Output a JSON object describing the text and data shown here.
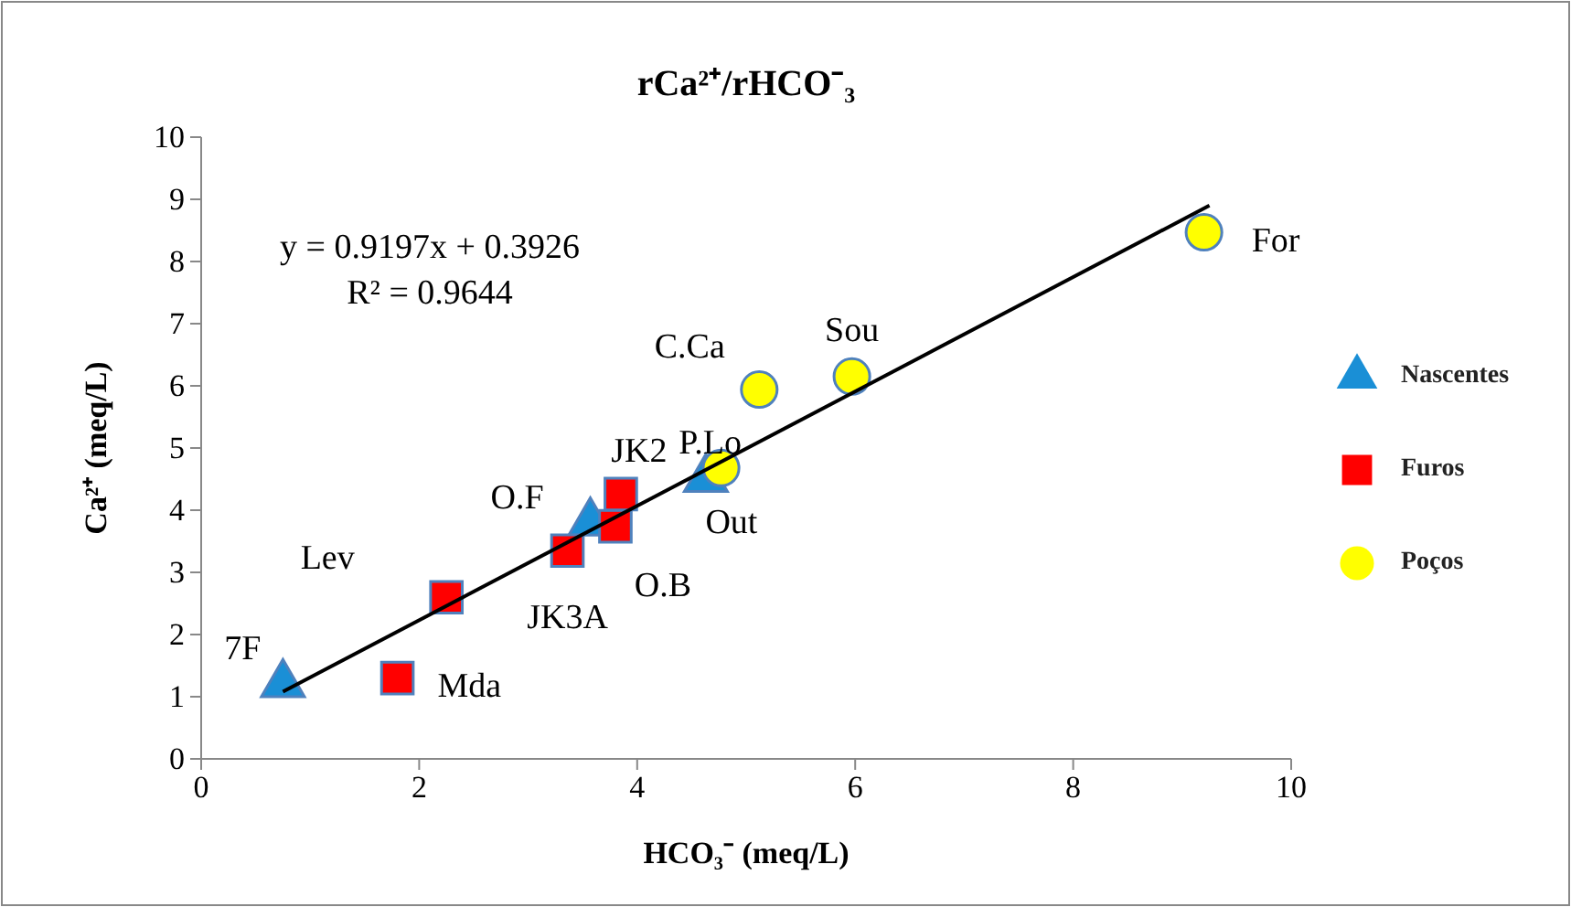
{
  "chart_data": {
    "type": "scatter",
    "title": "rCa²⁺/rHCO⁻₃",
    "xlabel": "HCO₃⁻ (meq/L)",
    "ylabel": "Ca²⁺ (meq/L)",
    "xlim": [
      0,
      10
    ],
    "xticks": [
      0,
      2,
      4,
      6,
      8,
      10
    ],
    "ylim": [
      0,
      10
    ],
    "yticks": [
      0,
      1,
      2,
      3,
      4,
      5,
      6,
      7,
      8,
      9,
      10
    ],
    "legend": "right",
    "series": [
      {
        "name": "Nascentes",
        "color": "#1a8fd6",
        "marker": "triangle",
        "x": [
          0.75,
          3.57,
          4.63
        ],
        "values": [
          1.2,
          3.8,
          4.5
        ]
      },
      {
        "name": "Furos",
        "color": "#ff0000",
        "marker": "square",
        "x": [
          1.8,
          2.25,
          3.36,
          3.8,
          3.85
        ],
        "values": [
          1.3,
          2.6,
          3.35,
          3.74,
          4.26
        ]
      },
      {
        "name": "Poços",
        "color": "#ffff00",
        "marker": "circle",
        "x": [
          4.77,
          5.12,
          5.97,
          9.2
        ],
        "values": [
          4.68,
          5.94,
          6.15,
          8.47
        ]
      },
      {
        "type": "line",
        "color": "#000000",
        "x": [
          0.75,
          9.25
        ],
        "values": [
          1.08,
          8.9
        ]
      }
    ],
    "annotations": [
      "y = 0.9197x + 0.3926",
      "R² = 0.9644",
      {
        "text": "7F",
        "x": 0.75,
        "y": 1.2
      },
      {
        "text": "O.F",
        "x": 3.57,
        "y": 3.8
      },
      {
        "text": "Out",
        "x": 4.63,
        "y": 4.5
      },
      {
        "text": "Mda",
        "x": 1.8,
        "y": 1.3
      },
      {
        "text": "Lev",
        "x": 2.25,
        "y": 2.6
      },
      {
        "text": "JK3A",
        "x": 3.36,
        "y": 3.35
      },
      {
        "text": "O.B",
        "x": 3.8,
        "y": 3.74
      },
      {
        "text": "JK2",
        "x": 3.85,
        "y": 4.26
      },
      {
        "text": "P.Lo",
        "x": 4.77,
        "y": 4.68
      },
      {
        "text": "C.Ca",
        "x": 5.12,
        "y": 5.94
      },
      {
        "text": "Sou",
        "x": 5.97,
        "y": 6.15
      },
      {
        "text": "For",
        "x": 9.2,
        "y": 8.47
      }
    ]
  }
}
